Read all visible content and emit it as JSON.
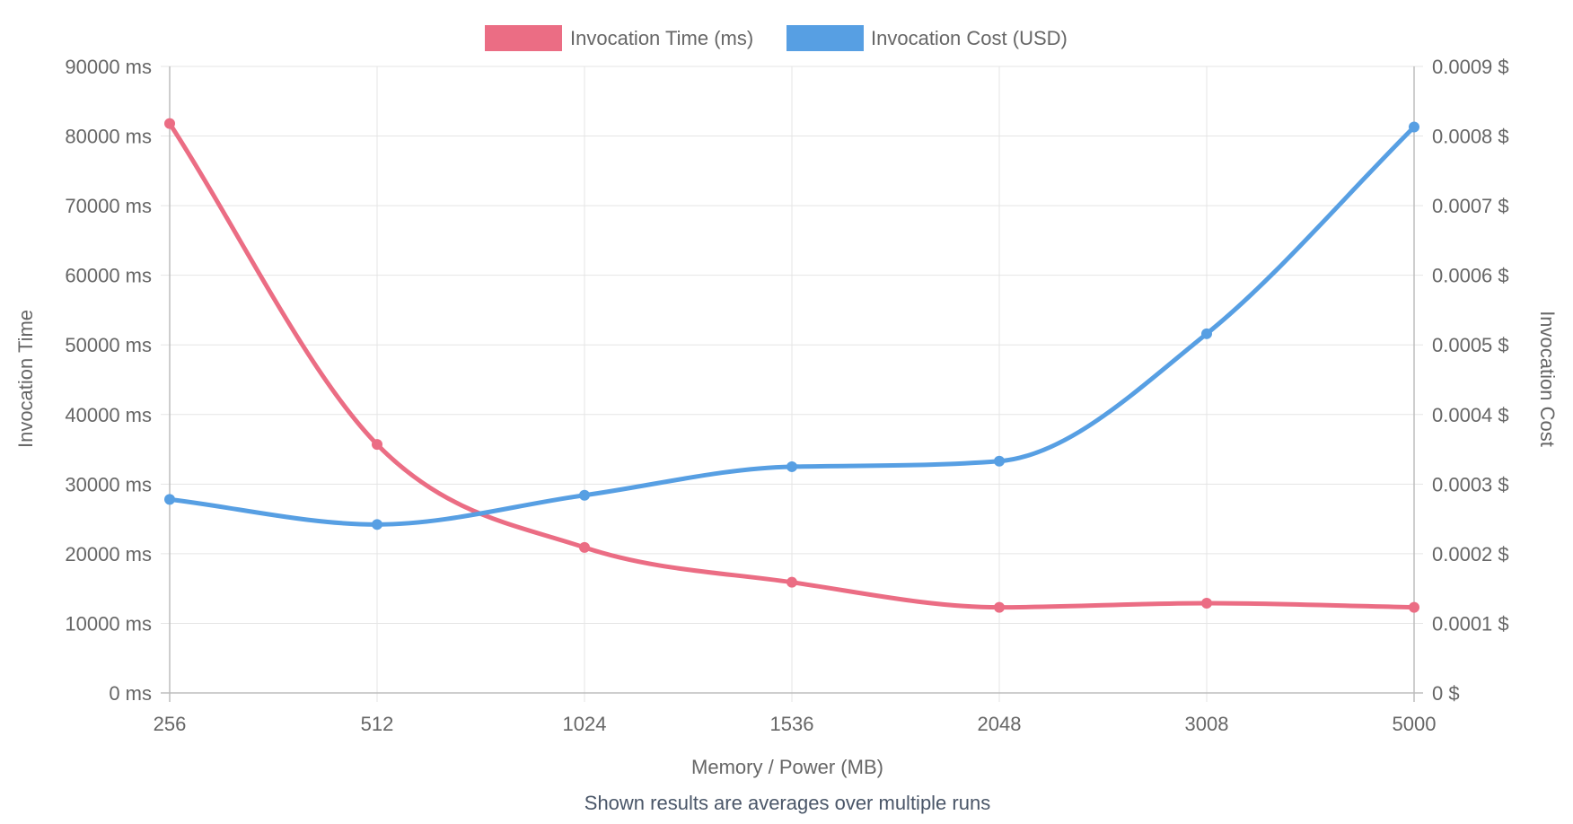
{
  "chart_data": {
    "type": "line",
    "categories": [
      "256",
      "512",
      "1024",
      "1536",
      "2048",
      "3008",
      "5000"
    ],
    "series": [
      {
        "name": "Invocation Time (ms)",
        "axis": "left",
        "color": "#eb6d84",
        "values": [
          81800,
          35700,
          20900,
          15900,
          12300,
          12900,
          12300
        ]
      },
      {
        "name": "Invocation Cost (USD)",
        "axis": "right",
        "color": "#579fe3",
        "values": [
          0.000278,
          0.000242,
          0.000284,
          0.000325,
          0.000333,
          0.000516,
          0.000813
        ]
      }
    ],
    "xlabel": "Memory / Power (MB)",
    "ylabel_left": "Invocation Time",
    "ylabel_right": "Invocation Cost",
    "ylim_left": [
      0,
      90000
    ],
    "ylim_right": [
      0,
      0.0009
    ],
    "yticks_left": [
      "0 ms",
      "10000 ms",
      "20000 ms",
      "30000 ms",
      "40000 ms",
      "50000 ms",
      "60000 ms",
      "70000 ms",
      "80000 ms",
      "90000 ms"
    ],
    "yticks_right": [
      "0 $",
      "0.0001 $",
      "0.0002 $",
      "0.0003 $",
      "0.0004 $",
      "0.0005 $",
      "0.0006 $",
      "0.0007 $",
      "0.0008 $",
      "0.0009 $"
    ],
    "grid": true,
    "legend_position": "top-center",
    "footnote": "Shown results are averages over multiple runs"
  }
}
